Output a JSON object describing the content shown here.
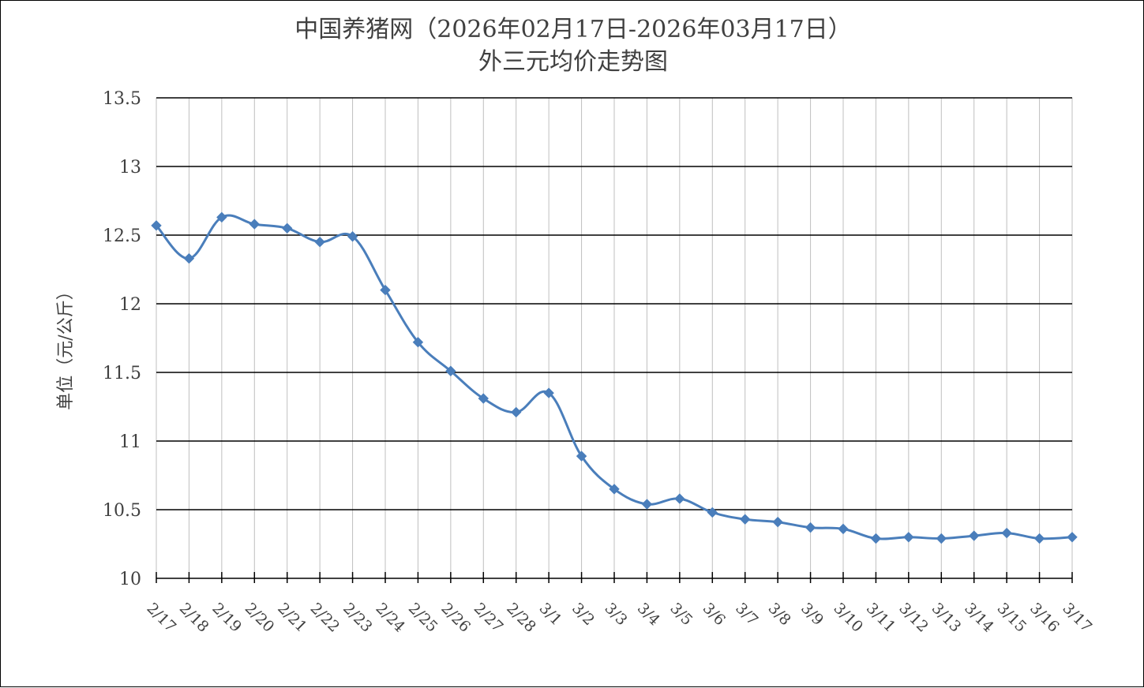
{
  "chart_data": {
    "type": "line",
    "title": "中国养猪网（2026年02月17日-2026年03月17日）",
    "subtitle": "外三元均价走势图",
    "ylabel": "单位（元/公斤）",
    "xlabel": "",
    "ylim": [
      10,
      13.5
    ],
    "yticks": [
      10,
      10.5,
      11,
      11.5,
      12,
      12.5,
      13,
      13.5
    ],
    "ytick_labels": [
      "10",
      "10.5",
      "11",
      "11.5",
      "12",
      "12.5",
      "13",
      "13.5"
    ],
    "grid": true,
    "legend": "none",
    "line_color": "#4a7ebb",
    "categories": [
      "2/17",
      "2/18",
      "2/19",
      "2/20",
      "2/21",
      "2/22",
      "2/23",
      "2/24",
      "2/25",
      "2/26",
      "2/27",
      "2/28",
      "3/1",
      "3/2",
      "3/3",
      "3/4",
      "3/5",
      "3/6",
      "3/7",
      "3/8",
      "3/9",
      "3/10",
      "3/11",
      "3/12",
      "3/13",
      "3/14",
      "3/15",
      "3/16",
      "3/17"
    ],
    "series": [
      {
        "values": [
          12.57,
          12.33,
          12.63,
          12.58,
          12.55,
          12.45,
          12.49,
          12.1,
          11.72,
          11.51,
          11.31,
          11.21,
          11.35,
          10.89,
          10.65,
          10.54,
          10.58,
          10.48,
          10.43,
          10.41,
          10.37,
          10.36,
          10.29,
          10.3,
          10.29,
          10.31,
          10.33,
          10.29,
          10.3
        ]
      }
    ]
  }
}
